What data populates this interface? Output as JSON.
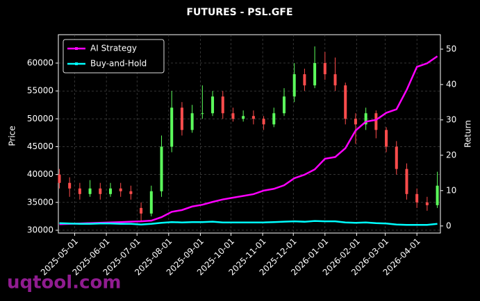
{
  "chart_data": {
    "type": "candlestick",
    "title": "FUTURES - PSL.GFE",
    "y_label": "Price",
    "y2_label": "Return",
    "watermark": "uqtool.com",
    "x": [
      "2025-04-16",
      "2025-04-26",
      "2025-05-06",
      "2025-05-16",
      "2025-05-26",
      "2025-06-05",
      "2025-06-15",
      "2025-06-25",
      "2025-07-05",
      "2025-07-15",
      "2025-07-25",
      "2025-08-04",
      "2025-08-14",
      "2025-08-24",
      "2025-09-03",
      "2025-09-13",
      "2025-09-23",
      "2025-10-03",
      "2025-10-13",
      "2025-10-23",
      "2025-11-02",
      "2025-11-12",
      "2025-11-22",
      "2025-12-02",
      "2025-12-12",
      "2025-12-22",
      "2026-01-01",
      "2026-01-11",
      "2026-01-21",
      "2026-01-31",
      "2026-02-10",
      "2026-02-20",
      "2026-03-02",
      "2026-03-12",
      "2026-03-22",
      "2026-04-01",
      "2026-04-11",
      "2026-04-21"
    ],
    "open": [
      40000,
      38500,
      37500,
      36500,
      37500,
      36500,
      37500,
      37000,
      34000,
      33000,
      37000,
      45000,
      52000,
      48000,
      51000,
      51000,
      54000,
      51000,
      50000,
      50500,
      50000,
      49000,
      51000,
      54000,
      58000,
      56000,
      60000,
      58000,
      56000,
      50000,
      49000,
      51000,
      48000,
      45000,
      41000,
      36500,
      35000,
      34500
    ],
    "close": [
      38500,
      37500,
      36500,
      37500,
      36500,
      37500,
      37000,
      36500,
      33000,
      37000,
      45000,
      52000,
      48000,
      51000,
      51000,
      54000,
      51000,
      50000,
      50500,
      50000,
      49000,
      51000,
      54000,
      58000,
      56000,
      60000,
      58000,
      56000,
      50000,
      49000,
      51000,
      48000,
      45000,
      41000,
      36500,
      35000,
      34500,
      38000
    ],
    "high": [
      41000,
      39500,
      38500,
      39000,
      38500,
      38500,
      38500,
      38000,
      35000,
      38000,
      47000,
      55000,
      53000,
      52500,
      56000,
      55000,
      55000,
      52000,
      51500,
      51500,
      50500,
      52000,
      55500,
      60000,
      59000,
      63000,
      62000,
      61000,
      56500,
      51000,
      52000,
      51500,
      48500,
      46000,
      42000,
      37500,
      36000,
      40500
    ],
    "low": [
      37500,
      36000,
      35500,
      36000,
      35500,
      36000,
      36000,
      35500,
      31500,
      32500,
      36000,
      44000,
      47000,
      47500,
      50000,
      50500,
      50000,
      49500,
      49500,
      49000,
      48000,
      48500,
      50500,
      53000,
      55000,
      55500,
      57000,
      55000,
      49000,
      45500,
      48000,
      46500,
      44000,
      40000,
      35500,
      34000,
      33500,
      34000
    ],
    "up_color": "#5cff5c",
    "down_color": "#ff4c4c",
    "series": [
      {
        "name": "AI Strategy",
        "color": "#ff00ff",
        "axis": "y2",
        "values": [
          0.5,
          0.6,
          0.7,
          0.8,
          0.9,
          1.0,
          1.1,
          1.2,
          1.3,
          1.5,
          2.5,
          4.0,
          4.5,
          5.5,
          6.0,
          6.8,
          7.5,
          8.0,
          8.5,
          9.0,
          10.0,
          10.5,
          11.5,
          13.5,
          14.5,
          16.0,
          19.0,
          19.5,
          22.0,
          27.0,
          29.5,
          30.0,
          32.0,
          33.0,
          38.5,
          45.0,
          46.0,
          48.0
        ]
      },
      {
        "name": "Buy-and-Hold",
        "color": "#00ffff",
        "axis": "y2",
        "values": [
          0.8,
          0.7,
          0.6,
          0.6,
          0.7,
          0.7,
          0.6,
          0.6,
          0.4,
          0.6,
          0.9,
          1.1,
          1.0,
          1.1,
          1.1,
          1.2,
          1.0,
          1.0,
          1.0,
          1.0,
          1.0,
          1.1,
          1.2,
          1.3,
          1.2,
          1.4,
          1.3,
          1.3,
          1.0,
          0.9,
          1.0,
          0.8,
          0.7,
          0.4,
          0.3,
          0.3,
          0.3,
          0.6
        ]
      }
    ],
    "xlim": [
      "2025-04-15",
      "2026-04-24"
    ],
    "xticks": [
      "2025-05-01",
      "2025-06-01",
      "2025-07-01",
      "2025-08-01",
      "2025-09-01",
      "2025-10-01",
      "2025-11-01",
      "2025-12-01",
      "2026-01-01",
      "2026-02-01",
      "2026-03-01",
      "2026-04-01"
    ],
    "ylim": [
      29500,
      65100
    ],
    "yticks": [
      30000,
      35000,
      40000,
      45000,
      50000,
      55000,
      60000
    ],
    "y2lim": [
      -2,
      54.1
    ],
    "y2ticks": [
      0,
      10,
      20,
      30,
      40,
      50
    ],
    "grid": true,
    "legend": "upper left"
  }
}
